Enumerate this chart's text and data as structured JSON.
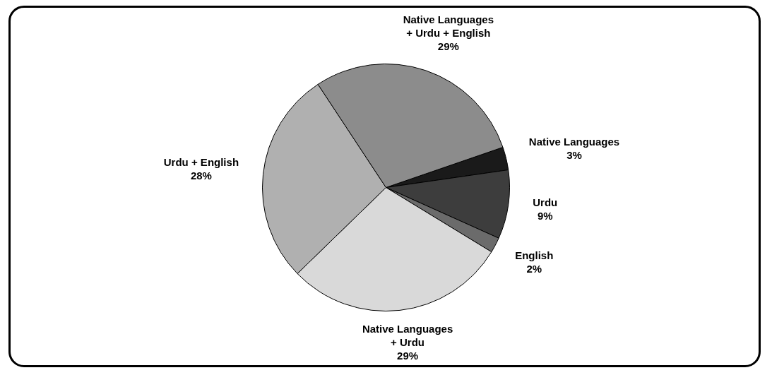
{
  "chart_data": {
    "type": "pie",
    "categories": [
      "Native Languages",
      "Urdu",
      "English",
      "Native Languages + Urdu",
      "Urdu + English",
      "Native Languages + Urdu + English"
    ],
    "values": [
      3,
      9,
      2,
      29,
      28,
      29
    ],
    "value_labels": [
      "3%",
      "9%",
      "2%",
      "29%",
      "28%",
      "29%"
    ],
    "colors": [
      "#1a1a1a",
      "#3d3d3d",
      "#6b6b6b",
      "#d9d9d9",
      "#b0b0b0",
      "#8c8c8c"
    ]
  }
}
